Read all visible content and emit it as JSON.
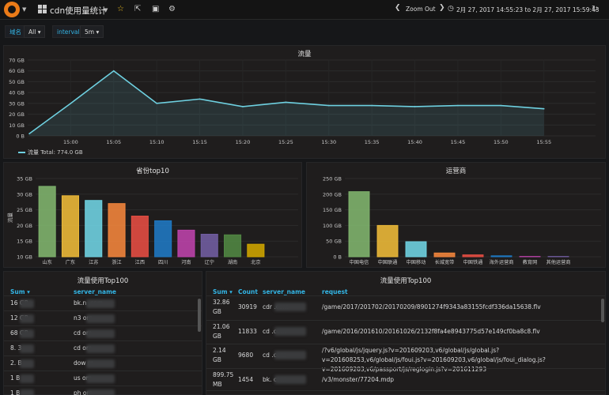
{
  "topbar": {
    "title": "cdn使用量统计",
    "zoom_out": "Zoom Out",
    "range": "2月 27, 2017 14:55:23 to 2月 27, 2017 15:59:43"
  },
  "variables": [
    {
      "label": "域名",
      "value": "All"
    },
    {
      "label": "interval",
      "value": "5m"
    }
  ],
  "traffic_panel": {
    "title": "流量",
    "legend": "流量  Total: 774.0 GB"
  },
  "province_panel": {
    "title": "省份top10"
  },
  "isp_panel": {
    "title": "运营商"
  },
  "left_table": {
    "title": "流量使用Top100",
    "headers": [
      "Sum",
      "server_name"
    ],
    "rows": [
      {
        "sum": "16 GB",
        "server": "bk.n .com"
      },
      {
        "sum": "12 GB",
        "server": "n3 om"
      },
      {
        "sum": "68 GB",
        "server": "cd om"
      },
      {
        "sum": "8. 3",
        "server": "cd om"
      },
      {
        "sum": "2. B",
        "server": "dow m"
      },
      {
        "sum": "1 B",
        "server": "us om"
      },
      {
        "sum": "1 B",
        "server": "ph om"
      }
    ]
  },
  "right_table": {
    "title": "流量使用Top100",
    "headers": [
      "Sum",
      "Count",
      "server_name",
      "request"
    ],
    "rows": [
      {
        "sum": "32.86 GB",
        "count": "30919",
        "server": "cdr .com",
        "request": "/game/2017/201702/20170209/8901274f9343a83155fcdf336da15638.flv"
      },
      {
        "sum": "21.06 GB",
        "count": "11833",
        "server": "cd .com",
        "request": "/game/2016/201610/20161026/2132f8fa4e8943775d57e149cf0ba8c8.flv"
      },
      {
        "sum": "2.14 GB",
        "count": "9680",
        "server": "cd .com",
        "request": "/?v6/global/js/jquery.js?v=201609203,v6/global/js/global.js?v=201608253,v6/global/js/foui.js?v=201609203,v6/global/js/foui_dialog.js?v=201609203,v6/passport/js/reglogin.js?v=201611293"
      },
      {
        "sum": "899.75 MB",
        "count": "1454",
        "server": "bk. com",
        "request": "/v3/monster/77204.mdp"
      },
      {
        "sum": "",
        "count": "",
        "server": "",
        "request": ""
      }
    ]
  },
  "chart_data": [
    {
      "type": "area",
      "title": "流量",
      "x": [
        "14:56",
        "15:00",
        "15:05",
        "15:10",
        "15:15",
        "15:20",
        "15:25",
        "15:30",
        "15:35",
        "15:40",
        "15:45",
        "15:50",
        "15:55"
      ],
      "xticks": [
        "15:00",
        "15:05",
        "15:10",
        "15:15",
        "15:20",
        "15:25",
        "15:30",
        "15:35",
        "15:40",
        "15:45",
        "15:50",
        "15:55"
      ],
      "series": [
        {
          "name": "流量",
          "values": [
            2,
            30,
            60,
            30,
            34,
            27,
            31,
            28,
            28,
            27,
            28,
            28,
            25
          ]
        }
      ],
      "yticks": [
        "0 B",
        "10 GB",
        "20 GB",
        "30 GB",
        "40 GB",
        "50 GB",
        "60 GB",
        "70 GB"
      ],
      "ylim": [
        0,
        70
      ],
      "color": "#6ed0e0"
    },
    {
      "type": "bar",
      "title": "省份top10",
      "categories": [
        "山东",
        "广东",
        "江苏",
        "浙江",
        "江西",
        "四川",
        "河南",
        "辽宁",
        "湖南",
        "北京"
      ],
      "values": [
        32.5,
        29.5,
        28,
        27,
        23,
        21.5,
        18.5,
        17.2,
        17,
        14
      ],
      "colors": [
        "#7eb26d",
        "#eab839",
        "#6ed0e0",
        "#ef843c",
        "#e24d42",
        "#1f78c1",
        "#ba43a9",
        "#705da0",
        "#508642",
        "#cca300"
      ],
      "yticks": [
        "10 GB",
        "15 GB",
        "20 GB",
        "25 GB",
        "30 GB",
        "35 GB"
      ],
      "ylim": [
        10,
        35
      ],
      "ylabel": "流量"
    },
    {
      "type": "bar",
      "title": "运营商",
      "categories": [
        "中国电信",
        "中国联通",
        "中国移动",
        "长城宽带",
        "中国铁通",
        "海外运营商",
        "教育网",
        "其他运营商"
      ],
      "values": [
        208,
        100,
        48,
        12,
        6,
        3,
        1,
        1
      ],
      "colors": [
        "#7eb26d",
        "#eab839",
        "#6ed0e0",
        "#ef843c",
        "#e24d42",
        "#1f78c1",
        "#ba43a9",
        "#705da0"
      ],
      "yticks": [
        "0 B",
        "50 GB",
        "100 GB",
        "150 GB",
        "200 GB",
        "250 GB"
      ],
      "ylim": [
        0,
        250
      ]
    }
  ]
}
